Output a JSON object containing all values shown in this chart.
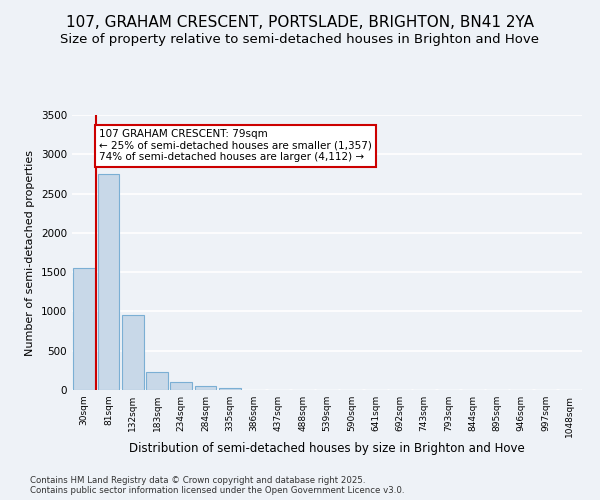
{
  "title1": "107, GRAHAM CRESCENT, PORTSLADE, BRIGHTON, BN41 2YA",
  "title2": "Size of property relative to semi-detached houses in Brighton and Hove",
  "xlabel": "Distribution of semi-detached houses by size in Brighton and Hove",
  "ylabel": "Number of semi-detached properties",
  "categories": [
    "30sqm",
    "81sqm",
    "132sqm",
    "183sqm",
    "234sqm",
    "284sqm",
    "335sqm",
    "386sqm",
    "437sqm",
    "488sqm",
    "539sqm",
    "590sqm",
    "641sqm",
    "692sqm",
    "743sqm",
    "793sqm",
    "844sqm",
    "895sqm",
    "946sqm",
    "997sqm",
    "1048sqm"
  ],
  "values": [
    1550,
    2750,
    950,
    225,
    105,
    55,
    20,
    5,
    2,
    1,
    1,
    0,
    0,
    0,
    0,
    0,
    0,
    0,
    0,
    0,
    0
  ],
  "bar_color": "#c8d8e8",
  "bar_edge_color": "#7bafd4",
  "annotation_title": "107 GRAHAM CRESCENT: 79sqm",
  "annotation_line1": "← 25% of semi-detached houses are smaller (1,357)",
  "annotation_line2": "74% of semi-detached houses are larger (4,112) →",
  "annotation_box_color": "#ffffff",
  "annotation_border_color": "#cc0000",
  "red_line_color": "#cc0000",
  "ylim": [
    0,
    3500
  ],
  "yticks": [
    0,
    500,
    1000,
    1500,
    2000,
    2500,
    3000,
    3500
  ],
  "footer1": "Contains HM Land Registry data © Crown copyright and database right 2025.",
  "footer2": "Contains public sector information licensed under the Open Government Licence v3.0.",
  "background_color": "#eef2f7",
  "plot_background": "#eef2f7",
  "grid_color": "#ffffff",
  "title1_fontsize": 11,
  "title2_fontsize": 9.5,
  "xlabel_fontsize": 8.5,
  "ylabel_fontsize": 8
}
